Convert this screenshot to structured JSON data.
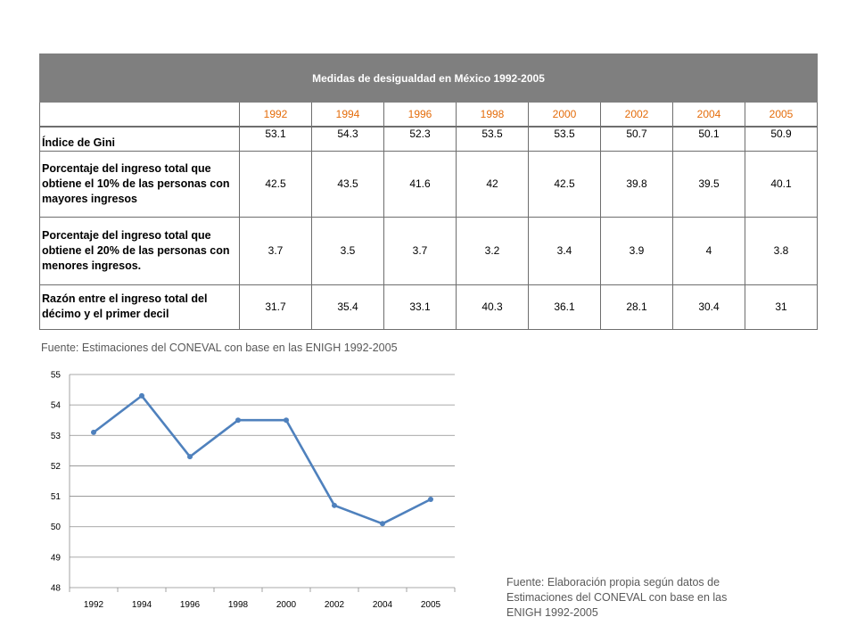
{
  "table": {
    "title": "Medidas de desigualdad en México 1992-2005",
    "years": [
      "1992",
      "1994",
      "1996",
      "1998",
      "2000",
      "2002",
      "2004",
      "2005"
    ],
    "rows": [
      {
        "label": "Índice de Gini",
        "values": [
          "53.1",
          "54.3",
          "52.3",
          "53.5",
          "53.5",
          "50.7",
          "50.1",
          "50.9"
        ]
      },
      {
        "label": "Porcentaje del ingreso total que obtiene el 10% de las personas con mayores ingresos",
        "values": [
          "42.5",
          "43.5",
          "41.6",
          "42",
          "42.5",
          "39.8",
          "39.5",
          "40.1"
        ]
      },
      {
        "label": "Porcentaje del ingreso total que obtiene el 20% de las personas con menores ingresos.",
        "values": [
          "3.7",
          "3.5",
          "3.7",
          "3.2",
          "3.4",
          "3.9",
          "4",
          "3.8"
        ]
      },
      {
        "label": "Razón entre el ingreso total del décimo y el primer decil",
        "values": [
          "31.7",
          "35.4",
          "33.1",
          "40.3",
          "36.1",
          "28.1",
          "30.4",
          "31"
        ]
      }
    ]
  },
  "table_source": "Fuente: Estimaciones del CONEVAL con base en las ENIGH 1992-2005",
  "chart_source": "Fuente: Elaboración propia según datos de Estimaciones del CONEVAL con base en las ENIGH 1992-2005",
  "chart_data": {
    "type": "line",
    "title": "",
    "xlabel": "",
    "ylabel": "",
    "categories": [
      "1992",
      "1994",
      "1996",
      "1998",
      "2000",
      "2002",
      "2004",
      "2005"
    ],
    "series": [
      {
        "values": [
          53.1,
          54.3,
          52.3,
          53.5,
          53.5,
          50.7,
          50.1,
          50.9
        ],
        "color": "#4f81bd"
      }
    ],
    "ylim": [
      48,
      55
    ],
    "yticks": [
      "48",
      "49",
      "50",
      "51",
      "52",
      "53",
      "54",
      "55"
    ],
    "grid": true,
    "legend": "none"
  }
}
